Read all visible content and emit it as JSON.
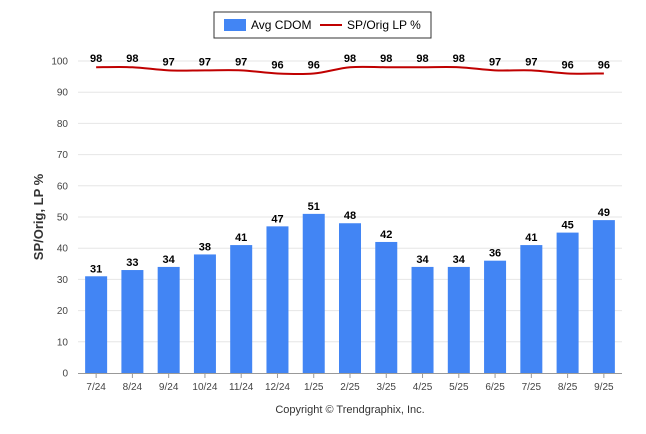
{
  "legend": {
    "bar_label": "Avg CDOM",
    "line_label": "SP/Orig LP %"
  },
  "footer": "Copyright © Trendgraphix, Inc.",
  "colors": {
    "bar": "#4285f4",
    "line": "#c00000",
    "grid": "#e6e6e6",
    "axis": "#999999"
  },
  "chart_data": {
    "type": "bar",
    "title": "",
    "xlabel": "",
    "ylabel": "SP/Orig, LP %",
    "ylim": [
      0,
      100
    ],
    "yticks": [
      0,
      10,
      20,
      30,
      40,
      50,
      60,
      70,
      80,
      90,
      100
    ],
    "grid": true,
    "legend_position": "top-center",
    "categories": [
      "7/24",
      "8/24",
      "9/24",
      "10/24",
      "11/24",
      "12/24",
      "1/25",
      "2/25",
      "3/25",
      "4/25",
      "5/25",
      "6/25",
      "7/25",
      "8/25",
      "9/25"
    ],
    "series": [
      {
        "name": "Avg CDOM",
        "type": "bar",
        "values": [
          31,
          33,
          34,
          38,
          41,
          47,
          51,
          48,
          42,
          34,
          34,
          36,
          41,
          45,
          49
        ]
      },
      {
        "name": "SP/Orig LP %",
        "type": "line",
        "values": [
          98,
          98,
          97,
          97,
          97,
          96,
          96,
          98,
          98,
          98,
          98,
          97,
          97,
          96,
          96
        ]
      }
    ]
  }
}
